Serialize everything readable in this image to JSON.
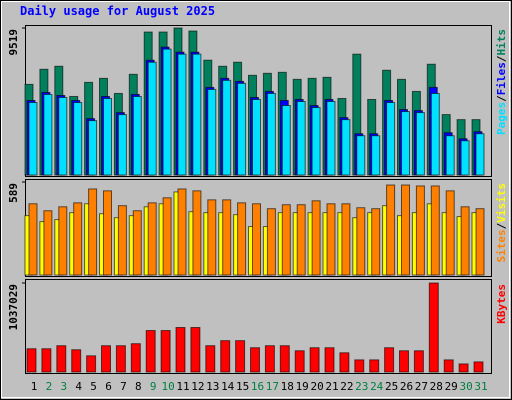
{
  "chart_data": {
    "type": "bar",
    "title": "Daily usage for August 2025",
    "title_color": "#0000ff",
    "legend_separator": "/",
    "categories": [
      "1",
      "2",
      "3",
      "4",
      "5",
      "6",
      "7",
      "8",
      "9",
      "10",
      "11",
      "12",
      "13",
      "14",
      "15",
      "16",
      "17",
      "18",
      "19",
      "20",
      "21",
      "22",
      "23",
      "24",
      "25",
      "26",
      "27",
      "28",
      "29",
      "30",
      "31"
    ],
    "category_colors": [
      "#000000",
      "#008040",
      "#008040",
      "#000000",
      "#000000",
      "#000000",
      "#000000",
      "#000000",
      "#008040",
      "#008040",
      "#000000",
      "#000000",
      "#000000",
      "#000000",
      "#000000",
      "#008040",
      "#008040",
      "#000000",
      "#000000",
      "#000000",
      "#000000",
      "#000000",
      "#008040",
      "#008040",
      "#000000",
      "#000000",
      "#000000",
      "#000000",
      "#000000",
      "#008040",
      "#008040"
    ],
    "panels": [
      {
        "ylim": [
          0,
          9519
        ],
        "yticks": [
          9519
        ],
        "series": [
          {
            "name": "Hits",
            "color": "#00805c",
            "values": [
              5868,
              6846,
              7041,
              5085,
              5998,
              6259,
              5281,
              6520,
              9258,
              9258,
              9519,
              9323,
              7433,
              7041,
              7302,
              6455,
              6585,
              6650,
              6194,
              6259,
              6324,
              4955,
              7824,
              4890,
              6781,
              6194,
              5411,
              7172,
              3912,
              3586,
              3586
            ]
          },
          {
            "name": "Files",
            "color": "#0000ff",
            "values": [
              4824,
              5346,
              5150,
              4824,
              3651,
              5085,
              4042,
              5215,
              7432,
              8280,
              7954,
              7954,
              5672,
              6259,
              6063,
              5020,
              5411,
              4825,
              4890,
              4499,
              4890,
              3716,
              2673,
              2673,
              4825,
              4238,
              4172,
              5672,
              2738,
              2347,
              2803
            ]
          },
          {
            "name": "Pages",
            "color": "#00e0ff",
            "values": [
              4694,
              5216,
              5020,
              4694,
              3521,
              4955,
              3912,
              5085,
              7302,
              8150,
              7824,
              7824,
              5542,
              6129,
              5933,
              4890,
              5281,
              4499,
              4760,
              4368,
              4760,
              3586,
              2543,
              2543,
              4694,
              4108,
              4042,
              5281,
              2543,
              2217,
              2673
            ]
          }
        ]
      },
      {
        "ylim": [
          0,
          589
        ],
        "yticks": [
          589
        ],
        "series": [
          {
            "name": "Visits",
            "color": "#ffff00",
            "values": [
              376,
              338,
              351,
              395,
              451,
              388,
              363,
              376,
              432,
              451,
              526,
              401,
              395,
              395,
              382,
              307,
              307,
              395,
              395,
              395,
              395,
              395,
              363,
              395,
              439,
              376,
              395,
              451,
              395,
              370,
              395
            ]
          },
          {
            "name": "Sites",
            "color": "#ff8000",
            "values": [
              451,
              407,
              432,
              457,
              545,
              533,
              439,
              407,
              457,
              489,
              545,
              533,
              476,
              476,
              457,
              451,
              420,
              445,
              445,
              470,
              451,
              451,
              426,
              420,
              570,
              570,
              564,
              564,
              533,
              432,
              420
            ]
          }
        ]
      },
      {
        "ylim": [
          0,
          1037029
        ],
        "yticks": [
          1037029
        ],
        "series": [
          {
            "name": "KBytes",
            "color": "#ff0000",
            "values": [
              271042,
              271042,
              306394,
              259257,
              188551,
              306394,
              306394,
              329964,
              483161,
              483161,
              518515,
              518515,
              306394,
              365317,
              365317,
              282826,
              306394,
              306394,
              247473,
              282826,
              282826,
              223904,
              141413,
              141413,
              282826,
              247473,
              247473,
              1037029,
              141413,
              94275,
              117844
            ]
          }
        ]
      }
    ]
  }
}
